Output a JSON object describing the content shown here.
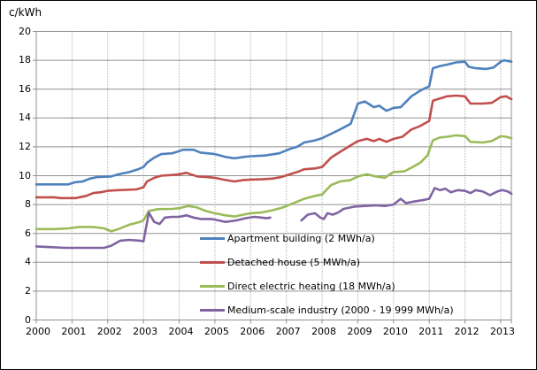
{
  "chart_data": {
    "type": "line",
    "title": "",
    "xlabel": "",
    "ylabel": "c/kWh",
    "xlim": [
      2000,
      2013.3
    ],
    "ylim": [
      0,
      20
    ],
    "y_ticks": [
      0,
      2,
      4,
      6,
      8,
      10,
      12,
      14,
      16,
      18,
      20
    ],
    "x_ticks": [
      2000,
      2001,
      2002,
      2003,
      2004,
      2005,
      2006,
      2007,
      2008,
      2009,
      2010,
      2011,
      2012,
      2013
    ],
    "grid": {
      "horizontal": "solid",
      "vertical": "dotted",
      "color": "#909090"
    },
    "legend_position": "inside-bottom-center",
    "series": [
      {
        "name": "Apartment building (2 MWh/a)",
        "color": "#4F81BD",
        "segments": [
          [
            [
              2000.0,
              9.4
            ],
            [
              2000.5,
              9.4
            ],
            [
              2000.9,
              9.4
            ],
            [
              2001.1,
              9.55
            ],
            [
              2001.3,
              9.6
            ],
            [
              2001.5,
              9.8
            ],
            [
              2001.7,
              9.9
            ],
            [
              2002.1,
              9.95
            ],
            [
              2002.3,
              10.1
            ],
            [
              2002.6,
              10.25
            ],
            [
              2002.85,
              10.45
            ],
            [
              2003.0,
              10.6
            ],
            [
              2003.1,
              10.9
            ],
            [
              2003.3,
              11.25
            ],
            [
              2003.5,
              11.5
            ],
            [
              2003.8,
              11.55
            ],
            [
              2004.0,
              11.7
            ],
            [
              2004.1,
              11.8
            ],
            [
              2004.4,
              11.8
            ],
            [
              2004.6,
              11.6
            ],
            [
              2005.0,
              11.5
            ],
            [
              2005.3,
              11.3
            ],
            [
              2005.55,
              11.2
            ],
            [
              2005.8,
              11.3
            ],
            [
              2006.0,
              11.35
            ],
            [
              2006.4,
              11.4
            ],
            [
              2006.8,
              11.55
            ],
            [
              2007.1,
              11.85
            ],
            [
              2007.3,
              12.0
            ],
            [
              2007.5,
              12.3
            ],
            [
              2007.8,
              12.45
            ],
            [
              2008.0,
              12.6
            ],
            [
              2008.25,
              12.9
            ],
            [
              2008.5,
              13.2
            ],
            [
              2008.8,
              13.6
            ],
            [
              2009.0,
              15.0
            ],
            [
              2009.2,
              15.15
            ],
            [
              2009.45,
              14.75
            ],
            [
              2009.6,
              14.85
            ],
            [
              2009.8,
              14.5
            ],
            [
              2010.0,
              14.7
            ],
            [
              2010.2,
              14.75
            ],
            [
              2010.5,
              15.5
            ],
            [
              2010.75,
              15.9
            ],
            [
              2011.0,
              16.2
            ],
            [
              2011.1,
              17.45
            ],
            [
              2011.3,
              17.6
            ],
            [
              2011.5,
              17.7
            ],
            [
              2011.75,
              17.85
            ],
            [
              2012.0,
              17.9
            ],
            [
              2012.1,
              17.55
            ],
            [
              2012.3,
              17.45
            ],
            [
              2012.6,
              17.4
            ],
            [
              2012.8,
              17.5
            ],
            [
              2013.0,
              17.9
            ],
            [
              2013.1,
              18.0
            ],
            [
              2013.3,
              17.9
            ]
          ]
        ]
      },
      {
        "name": "Detached house (5 MWh/a)",
        "color": "#C0504D",
        "segments": [
          [
            [
              2000.0,
              8.5
            ],
            [
              2000.5,
              8.5
            ],
            [
              2000.7,
              8.45
            ],
            [
              2001.1,
              8.45
            ],
            [
              2001.4,
              8.6
            ],
            [
              2001.6,
              8.8
            ],
            [
              2001.8,
              8.85
            ],
            [
              2002.0,
              8.95
            ],
            [
              2002.3,
              9.0
            ],
            [
              2002.8,
              9.05
            ],
            [
              2003.0,
              9.2
            ],
            [
              2003.1,
              9.6
            ],
            [
              2003.3,
              9.85
            ],
            [
              2003.5,
              10.0
            ],
            [
              2003.8,
              10.05
            ],
            [
              2004.0,
              10.1
            ],
            [
              2004.2,
              10.2
            ],
            [
              2004.5,
              9.95
            ],
            [
              2004.8,
              9.9
            ],
            [
              2005.0,
              9.85
            ],
            [
              2005.3,
              9.7
            ],
            [
              2005.55,
              9.6
            ],
            [
              2005.8,
              9.7
            ],
            [
              2006.0,
              9.73
            ],
            [
              2006.3,
              9.75
            ],
            [
              2006.6,
              9.8
            ],
            [
              2006.85,
              9.9
            ],
            [
              2007.1,
              10.1
            ],
            [
              2007.3,
              10.25
            ],
            [
              2007.5,
              10.45
            ],
            [
              2007.8,
              10.5
            ],
            [
              2008.0,
              10.6
            ],
            [
              2008.25,
              11.25
            ],
            [
              2008.5,
              11.65
            ],
            [
              2008.8,
              12.1
            ],
            [
              2009.0,
              12.4
            ],
            [
              2009.25,
              12.55
            ],
            [
              2009.45,
              12.4
            ],
            [
              2009.6,
              12.55
            ],
            [
              2009.8,
              12.35
            ],
            [
              2010.0,
              12.55
            ],
            [
              2010.25,
              12.7
            ],
            [
              2010.5,
              13.2
            ],
            [
              2010.75,
              13.45
            ],
            [
              2011.0,
              13.8
            ],
            [
              2011.1,
              15.2
            ],
            [
              2011.3,
              15.35
            ],
            [
              2011.5,
              15.5
            ],
            [
              2011.75,
              15.55
            ],
            [
              2012.0,
              15.5
            ],
            [
              2012.15,
              15.0
            ],
            [
              2012.5,
              15.0
            ],
            [
              2012.75,
              15.05
            ],
            [
              2013.0,
              15.45
            ],
            [
              2013.15,
              15.5
            ],
            [
              2013.3,
              15.3
            ]
          ]
        ]
      },
      {
        "name": "Direct electric heating (18 MWh/a)",
        "color": "#9BBB59",
        "segments": [
          [
            [
              2000.0,
              6.3
            ],
            [
              2000.5,
              6.3
            ],
            [
              2000.9,
              6.35
            ],
            [
              2001.2,
              6.45
            ],
            [
              2001.6,
              6.45
            ],
            [
              2001.9,
              6.35
            ],
            [
              2002.1,
              6.15
            ],
            [
              2002.3,
              6.3
            ],
            [
              2002.6,
              6.6
            ],
            [
              2002.9,
              6.8
            ],
            [
              2003.0,
              6.9
            ],
            [
              2003.15,
              7.55
            ],
            [
              2003.4,
              7.68
            ],
            [
              2003.8,
              7.7
            ],
            [
              2004.0,
              7.75
            ],
            [
              2004.25,
              7.9
            ],
            [
              2004.5,
              7.8
            ],
            [
              2004.75,
              7.55
            ],
            [
              2005.0,
              7.4
            ],
            [
              2005.3,
              7.25
            ],
            [
              2005.55,
              7.17
            ],
            [
              2005.8,
              7.3
            ],
            [
              2006.0,
              7.4
            ],
            [
              2006.3,
              7.45
            ],
            [
              2006.6,
              7.6
            ],
            [
              2006.9,
              7.8
            ],
            [
              2007.1,
              8.0
            ],
            [
              2007.3,
              8.2
            ],
            [
              2007.5,
              8.4
            ],
            [
              2007.8,
              8.6
            ],
            [
              2008.0,
              8.7
            ],
            [
              2008.25,
              9.35
            ],
            [
              2008.5,
              9.6
            ],
            [
              2008.8,
              9.7
            ],
            [
              2009.0,
              9.95
            ],
            [
              2009.25,
              10.1
            ],
            [
              2009.5,
              9.95
            ],
            [
              2009.75,
              9.85
            ],
            [
              2010.0,
              10.25
            ],
            [
              2010.3,
              10.3
            ],
            [
              2010.5,
              10.55
            ],
            [
              2010.75,
              10.9
            ],
            [
              2010.95,
              11.4
            ],
            [
              2011.1,
              12.45
            ],
            [
              2011.3,
              12.65
            ],
            [
              2011.5,
              12.7
            ],
            [
              2011.75,
              12.8
            ],
            [
              2012.0,
              12.75
            ],
            [
              2012.15,
              12.35
            ],
            [
              2012.5,
              12.3
            ],
            [
              2012.75,
              12.4
            ],
            [
              2013.0,
              12.75
            ],
            [
              2013.15,
              12.7
            ],
            [
              2013.3,
              12.6
            ]
          ]
        ]
      },
      {
        "name": "Medium-scale industry (2000 - 19 999 MWh/a)",
        "color": "#8064A2",
        "segments": [
          [
            [
              2000.0,
              5.1
            ],
            [
              2000.4,
              5.05
            ],
            [
              2000.8,
              5.0
            ],
            [
              2001.5,
              5.0
            ],
            [
              2001.9,
              5.0
            ],
            [
              2002.1,
              5.15
            ],
            [
              2002.35,
              5.5
            ],
            [
              2002.6,
              5.55
            ],
            [
              2002.9,
              5.5
            ],
            [
              2003.0,
              5.45
            ],
            [
              2003.08,
              6.5
            ],
            [
              2003.15,
              7.45
            ],
            [
              2003.3,
              6.8
            ],
            [
              2003.45,
              6.65
            ],
            [
              2003.6,
              7.1
            ],
            [
              2003.8,
              7.15
            ],
            [
              2004.0,
              7.15
            ],
            [
              2004.2,
              7.25
            ],
            [
              2004.4,
              7.1
            ],
            [
              2004.6,
              7.0
            ],
            [
              2004.9,
              7.0
            ],
            [
              2005.1,
              6.9
            ],
            [
              2005.3,
              6.8
            ],
            [
              2005.6,
              6.9
            ],
            [
              2005.85,
              7.05
            ],
            [
              2006.1,
              7.15
            ],
            [
              2006.3,
              7.1
            ],
            [
              2006.45,
              7.05
            ],
            [
              2006.55,
              7.1
            ]
          ],
          [
            [
              2007.42,
              6.9
            ],
            [
              2007.6,
              7.3
            ],
            [
              2007.8,
              7.4
            ],
            [
              2007.95,
              7.1
            ],
            [
              2008.05,
              7.0
            ],
            [
              2008.15,
              7.4
            ],
            [
              2008.3,
              7.3
            ],
            [
              2008.45,
              7.45
            ],
            [
              2008.6,
              7.7
            ],
            [
              2008.9,
              7.85
            ],
            [
              2009.2,
              7.9
            ],
            [
              2009.5,
              7.95
            ],
            [
              2009.75,
              7.9
            ],
            [
              2010.0,
              8.0
            ],
            [
              2010.2,
              8.4
            ],
            [
              2010.35,
              8.1
            ],
            [
              2010.55,
              8.2
            ],
            [
              2010.8,
              8.3
            ],
            [
              2011.0,
              8.4
            ],
            [
              2011.15,
              9.15
            ],
            [
              2011.3,
              9.0
            ],
            [
              2011.45,
              9.1
            ],
            [
              2011.6,
              8.85
            ],
            [
              2011.8,
              9.0
            ],
            [
              2012.0,
              8.95
            ],
            [
              2012.15,
              8.8
            ],
            [
              2012.3,
              9.0
            ],
            [
              2012.5,
              8.9
            ],
            [
              2012.7,
              8.65
            ],
            [
              2012.9,
              8.9
            ],
            [
              2013.05,
              9.0
            ],
            [
              2013.2,
              8.9
            ],
            [
              2013.3,
              8.75
            ]
          ]
        ]
      }
    ]
  }
}
